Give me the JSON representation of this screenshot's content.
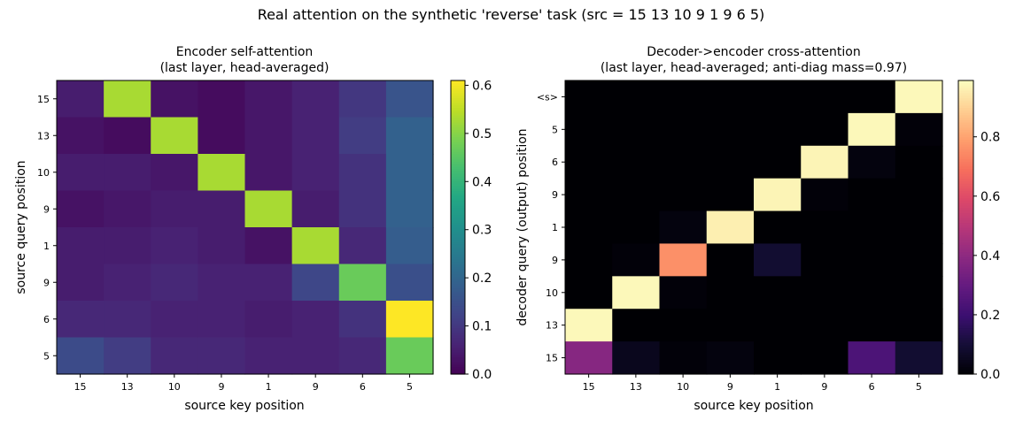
{
  "figure": {
    "title": "Real attention on the synthetic 'reverse' task  (src = 15 13 10 9 1 9 6 5)"
  },
  "chart_data": [
    {
      "type": "heatmap",
      "title_line1": "Encoder self-attention",
      "title_line2": "(last layer, head-averaged)",
      "xlabel": "source key position",
      "ylabel": "source query position",
      "x_categories": [
        "15",
        "13",
        "10",
        "9",
        "1",
        "9",
        "6",
        "5"
      ],
      "y_categories": [
        "15",
        "13",
        "10",
        "9",
        "1",
        "9",
        "6",
        "5"
      ],
      "colormap": "viridis",
      "vmin": 0.0,
      "vmax": 0.61,
      "colorbar_ticks": [
        "0.0",
        "0.1",
        "0.2",
        "0.3",
        "0.4",
        "0.5",
        "0.6"
      ],
      "colorbar_tick_values": [
        0.0,
        0.1,
        0.2,
        0.3,
        0.4,
        0.5,
        0.6
      ],
      "values": [
        [
          0.05,
          0.53,
          0.03,
          0.02,
          0.04,
          0.06,
          0.1,
          0.16
        ],
        [
          0.03,
          0.02,
          0.53,
          0.02,
          0.04,
          0.06,
          0.11,
          0.19
        ],
        [
          0.05,
          0.05,
          0.04,
          0.53,
          0.04,
          0.06,
          0.09,
          0.19
        ],
        [
          0.03,
          0.04,
          0.05,
          0.05,
          0.53,
          0.05,
          0.09,
          0.19
        ],
        [
          0.05,
          0.05,
          0.06,
          0.05,
          0.03,
          0.53,
          0.07,
          0.18
        ],
        [
          0.05,
          0.06,
          0.07,
          0.06,
          0.06,
          0.13,
          0.47,
          0.15
        ],
        [
          0.07,
          0.07,
          0.06,
          0.06,
          0.05,
          0.06,
          0.09,
          0.61
        ],
        [
          0.14,
          0.11,
          0.07,
          0.07,
          0.06,
          0.06,
          0.07,
          0.47
        ]
      ]
    },
    {
      "type": "heatmap",
      "title_line1": "Decoder->encoder cross-attention",
      "title_line2": "(last layer, head-averaged; anti-diag mass=0.97)",
      "xlabel": "source key position",
      "ylabel": "decoder query (output) position",
      "x_categories": [
        "15",
        "13",
        "10",
        "9",
        "1",
        "9",
        "6",
        "5"
      ],
      "y_categories": [
        "<s>",
        "5",
        "6",
        "9",
        "1",
        "9",
        "10",
        "13",
        "15"
      ],
      "colormap": "magma",
      "vmin": 0.0,
      "vmax": 0.99,
      "colorbar_ticks": [
        "0.0",
        "0.2",
        "0.4",
        "0.6",
        "0.8"
      ],
      "colorbar_tick_values": [
        0.0,
        0.2,
        0.4,
        0.6,
        0.8
      ],
      "values": [
        [
          0.0,
          0.0,
          0.0,
          0.0,
          0.0,
          0.0,
          0.0,
          0.98
        ],
        [
          0.0,
          0.0,
          0.0,
          0.0,
          0.0,
          0.0,
          0.98,
          0.01
        ],
        [
          0.0,
          0.0,
          0.0,
          0.0,
          0.0,
          0.97,
          0.02,
          0.0
        ],
        [
          0.0,
          0.0,
          0.0,
          0.0,
          0.97,
          0.01,
          0.0,
          0.0
        ],
        [
          0.0,
          0.0,
          0.02,
          0.96,
          0.0,
          0.0,
          0.0,
          0.0
        ],
        [
          0.0,
          0.01,
          0.76,
          0.0,
          0.09,
          0.0,
          0.0,
          0.0
        ],
        [
          0.0,
          0.98,
          0.01,
          0.0,
          0.0,
          0.0,
          0.0,
          0.0
        ],
        [
          0.98,
          0.0,
          0.0,
          0.0,
          0.0,
          0.0,
          0.0,
          0.0
        ],
        [
          0.38,
          0.05,
          0.01,
          0.02,
          0.0,
          0.0,
          0.24,
          0.09
        ]
      ]
    }
  ]
}
